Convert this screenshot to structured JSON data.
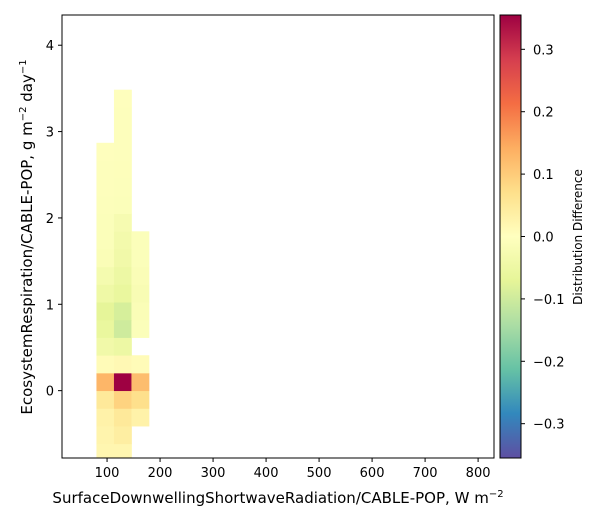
{
  "chart_data": {
    "type": "heatmap",
    "xlabel_main": "SurfaceDownwellingShortwaveRadiation/CABLE-POP,",
    "xlabel_unit": "W m",
    "xlabel_unit_exp": "−2",
    "ylabel_main": "EcosystemRespiration/CABLE-POP,",
    "ylabel_unit": "g m",
    "ylabel_unit_exp": "−2",
    "ylabel_unit_suffix": " day",
    "ylabel_unit_exp2": "−1",
    "xlim": [
      15,
      830
    ],
    "ylim": [
      -0.78,
      4.35
    ],
    "x_ticks": [
      100,
      200,
      300,
      400,
      500,
      600,
      700,
      800
    ],
    "y_ticks": [
      0,
      1,
      2,
      3,
      4
    ],
    "colorbar": {
      "label": "Distribution Difference",
      "range": [
        -0.355,
        0.355
      ],
      "ticks": [
        -0.3,
        -0.2,
        -0.1,
        0.0,
        0.1,
        0.2,
        0.3
      ],
      "tick_labels": [
        "−0.3",
        "−0.2",
        "−0.1",
        "0.0",
        "0.1",
        "0.2",
        "0.3"
      ],
      "colormap": "Spectral_r"
    },
    "bin_width_x": 33,
    "bin_height_y": 0.205,
    "cells": [
      {
        "x": 80,
        "y": -0.82,
        "v": 0.02
      },
      {
        "x": 113,
        "y": -0.82,
        "v": 0.02
      },
      {
        "x": 80,
        "y": -0.615,
        "v": 0.025
      },
      {
        "x": 113,
        "y": -0.615,
        "v": 0.04
      },
      {
        "x": 80,
        "y": -0.41,
        "v": 0.03
      },
      {
        "x": 113,
        "y": -0.41,
        "v": 0.05
      },
      {
        "x": 146,
        "y": -0.41,
        "v": 0.03
      },
      {
        "x": 80,
        "y": -0.205,
        "v": 0.05
      },
      {
        "x": 113,
        "y": -0.205,
        "v": 0.09
      },
      {
        "x": 146,
        "y": -0.205,
        "v": 0.07
      },
      {
        "x": 80,
        "y": 0.0,
        "v": 0.13
      },
      {
        "x": 113,
        "y": 0.0,
        "v": 0.355
      },
      {
        "x": 146,
        "y": 0.0,
        "v": 0.12
      },
      {
        "x": 80,
        "y": 0.205,
        "v": 0.01
      },
      {
        "x": 113,
        "y": 0.205,
        "v": 0.015
      },
      {
        "x": 146,
        "y": 0.205,
        "v": 0.01
      },
      {
        "x": 80,
        "y": 0.41,
        "v": -0.04
      },
      {
        "x": 113,
        "y": 0.41,
        "v": -0.05
      },
      {
        "x": 80,
        "y": 0.615,
        "v": -0.06
      },
      {
        "x": 113,
        "y": 0.615,
        "v": -0.1
      },
      {
        "x": 146,
        "y": 0.615,
        "v": -0.01
      },
      {
        "x": 80,
        "y": 0.82,
        "v": -0.07
      },
      {
        "x": 113,
        "y": 0.82,
        "v": -0.09
      },
      {
        "x": 146,
        "y": 0.82,
        "v": -0.015
      },
      {
        "x": 80,
        "y": 1.025,
        "v": -0.045
      },
      {
        "x": 113,
        "y": 1.025,
        "v": -0.06
      },
      {
        "x": 146,
        "y": 1.025,
        "v": -0.02
      },
      {
        "x": 80,
        "y": 1.23,
        "v": -0.03
      },
      {
        "x": 113,
        "y": 1.23,
        "v": -0.05
      },
      {
        "x": 146,
        "y": 1.23,
        "v": -0.015
      },
      {
        "x": 80,
        "y": 1.435,
        "v": -0.015
      },
      {
        "x": 113,
        "y": 1.435,
        "v": -0.04
      },
      {
        "x": 146,
        "y": 1.435,
        "v": -0.01
      },
      {
        "x": 80,
        "y": 1.64,
        "v": -0.01
      },
      {
        "x": 113,
        "y": 1.64,
        "v": -0.035
      },
      {
        "x": 146,
        "y": 1.64,
        "v": -0.01
      },
      {
        "x": 80,
        "y": 1.845,
        "v": -0.01
      },
      {
        "x": 113,
        "y": 1.845,
        "v": -0.025
      },
      {
        "x": 80,
        "y": 2.05,
        "v": -0.008
      },
      {
        "x": 113,
        "y": 2.05,
        "v": -0.01
      },
      {
        "x": 80,
        "y": 2.255,
        "v": -0.006
      },
      {
        "x": 113,
        "y": 2.255,
        "v": -0.008
      },
      {
        "x": 80,
        "y": 2.46,
        "v": -0.005
      },
      {
        "x": 113,
        "y": 2.46,
        "v": -0.007
      },
      {
        "x": 80,
        "y": 2.665,
        "v": -0.004
      },
      {
        "x": 113,
        "y": 2.665,
        "v": -0.006
      },
      {
        "x": 113,
        "y": 2.87,
        "v": -0.006
      },
      {
        "x": 113,
        "y": 3.075,
        "v": -0.005
      },
      {
        "x": 113,
        "y": 3.28,
        "v": -0.004
      }
    ]
  }
}
